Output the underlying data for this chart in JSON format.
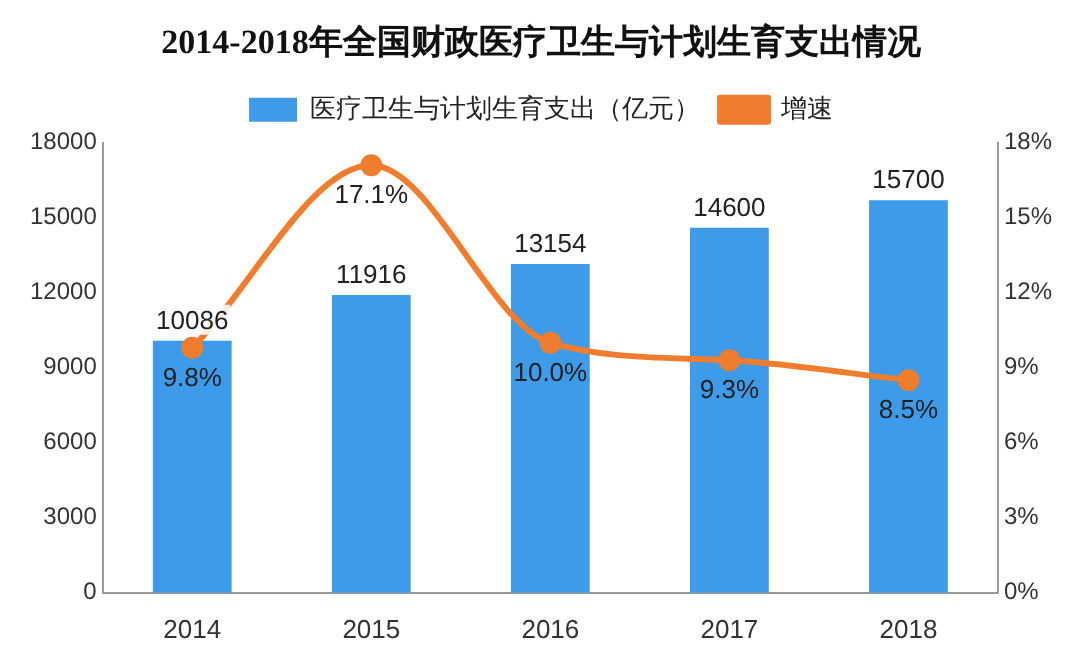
{
  "chart_data": {
    "type": "bar",
    "title": "2014-2018年全国财政医疗卫生与计划生育支出情况",
    "categories": [
      "2014",
      "2015",
      "2016",
      "2017",
      "2018"
    ],
    "series": [
      {
        "name": "医疗卫生与计划生育支出（亿元）",
        "color": "#3d9be9",
        "values": [
          10086,
          11916,
          13154,
          14600,
          15700
        ],
        "value_labels": [
          "10086",
          "11916",
          "13154",
          "14600",
          "15700"
        ]
      },
      {
        "name": "增速",
        "type": "line",
        "axis": "y2",
        "color": "#f07d2e",
        "values": [
          9.8,
          17.1,
          10.0,
          9.3,
          8.5
        ],
        "value_labels": [
          "9.8%",
          "17.1%",
          "10.0%",
          "9.3%",
          "8.5%"
        ]
      }
    ],
    "ylim": [
      0,
      18000
    ],
    "yticks": [
      0,
      3000,
      6000,
      9000,
      12000,
      15000,
      18000
    ],
    "y2lim": [
      0,
      18
    ],
    "y2ticks": [
      {
        "value": 0,
        "label": "0%"
      },
      {
        "value": 3,
        "label": "3%"
      },
      {
        "value": 6,
        "label": "6%"
      },
      {
        "value": 9,
        "label": "9%"
      },
      {
        "value": 12,
        "label": "12%"
      },
      {
        "value": 15,
        "label": "15%"
      },
      {
        "value": 18,
        "label": "18%"
      }
    ],
    "legend": "top",
    "marker": "circle",
    "grid": false
  }
}
